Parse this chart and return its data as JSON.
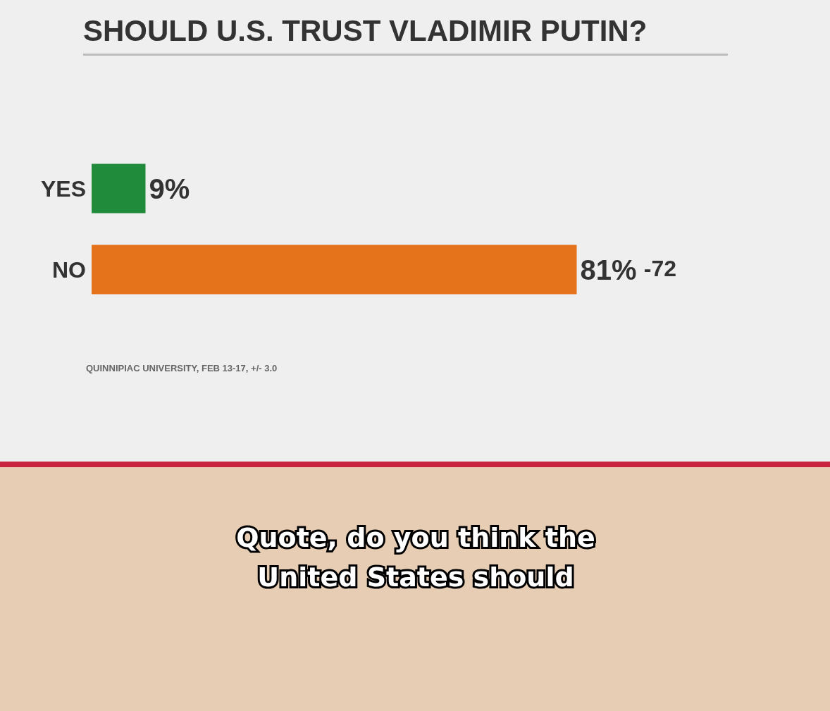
{
  "chart_data": {
    "type": "bar",
    "orientation": "horizontal",
    "title": "SHOULD U.S. TRUST VLADIMIR PUTIN?",
    "categories": [
      "YES",
      "NO"
    ],
    "values": [
      9,
      81
    ],
    "colors": [
      "#1f8b3b",
      "#e5731c"
    ],
    "value_labels": [
      "9%",
      "81%"
    ],
    "annotations": [
      "-72",
      "QUINNIPIAC UNIVERSITY, FEB 13-17, +/- 3.0",
      "Quote, do you think the United States should"
    ]
  }
}
